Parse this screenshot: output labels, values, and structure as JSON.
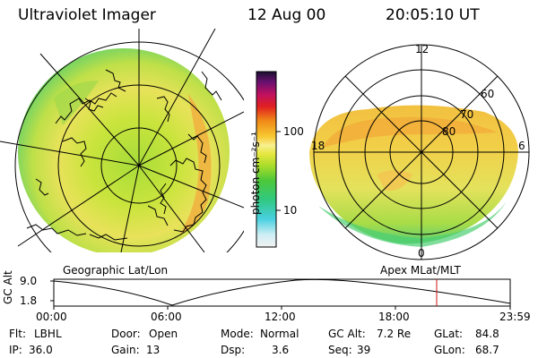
{
  "header": {
    "instrument": "Ultraviolet Imager",
    "date": "12 Aug 00",
    "time": "20:05:10 UT"
  },
  "colorbar": {
    "unit_label": "photon cm⁻²s⁻¹",
    "ticks": [
      "100",
      "10"
    ]
  },
  "polar_plot": {
    "mlt_labels": {
      "top": "12",
      "left": "18",
      "right": "6",
      "bottom": "0"
    },
    "lat_labels": [
      "60",
      "70",
      "80"
    ]
  },
  "panel_captions": {
    "left": "Geographic Lat/Lon",
    "right": "Apex MLat/MLT"
  },
  "altitude_plot": {
    "axis_label": "GC Alt",
    "y_ticks": [
      "9.0",
      "1.8"
    ],
    "time_ticks": [
      "00:00",
      "06:00",
      "12:00",
      "18:00",
      "23:59"
    ],
    "marker_color": "#d01010"
  },
  "info": {
    "flt_label": "Flt:",
    "flt_value": "LBHL",
    "door_label": "Door:",
    "door_value": "Open",
    "mode_label": "Mode:",
    "mode_value": "Normal",
    "gcalt_label": "GC Alt:",
    "gcalt_value": "7.2 Re",
    "glat_label": "GLat:",
    "glat_value": "84.8",
    "ip_label": "IP:",
    "ip_value": "36.0",
    "gain_label": "Gain:",
    "gain_value": "13",
    "dsp_label": "Dsp:",
    "dsp_value": "3.6",
    "seq_label": "Seq:",
    "seq_value": "39",
    "glon_label": "GLon:",
    "glon_value": "68.7"
  }
}
